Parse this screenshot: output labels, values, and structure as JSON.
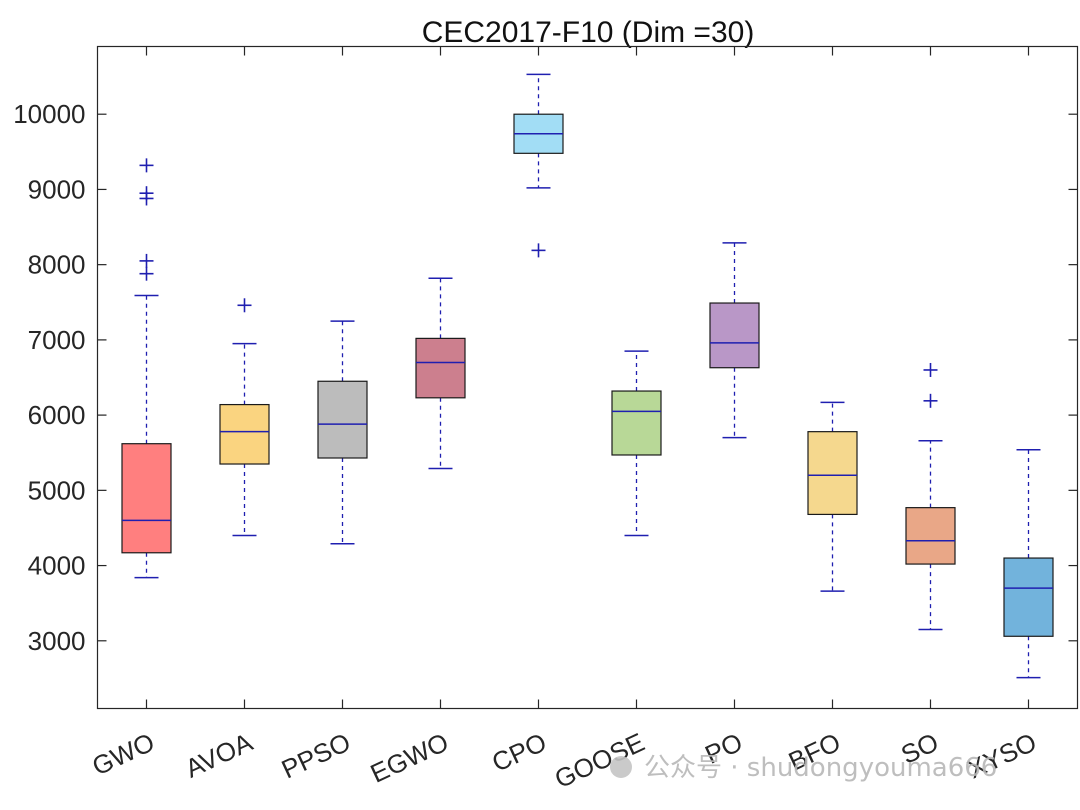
{
  "chart_data": {
    "type": "boxplot",
    "title": "CEC2017-F10 (Dim =30)",
    "xlabel": "",
    "ylabel": "",
    "ylim": [
      2100,
      10900
    ],
    "yticks": [
      3000,
      4000,
      5000,
      6000,
      7000,
      8000,
      9000,
      10000
    ],
    "grid": false,
    "categories": [
      "GWO",
      "AVOA",
      "PPSO",
      "EGWO",
      "CPO",
      "GOOSE",
      "PO",
      "BFO",
      "SO",
      "XYSO"
    ],
    "boxes": [
      {
        "name": "GWO",
        "whisker_low": 3840,
        "q1": 4170,
        "median": 4600,
        "q3": 5620,
        "whisker_high": 7590,
        "outliers": [
          7880,
          8050,
          8880,
          8950,
          9320
        ],
        "color": "#FF7F7F"
      },
      {
        "name": "AVOA",
        "whisker_low": 4400,
        "q1": 5350,
        "median": 5780,
        "q3": 6140,
        "whisker_high": 6950,
        "outliers": [
          7460
        ],
        "color": "#FAD480"
      },
      {
        "name": "PPSO",
        "whisker_low": 4290,
        "q1": 5430,
        "median": 5880,
        "q3": 6450,
        "whisker_high": 7250,
        "outliers": [],
        "color": "#BCBCBC"
      },
      {
        "name": "EGWO",
        "whisker_low": 5290,
        "q1": 6230,
        "median": 6700,
        "q3": 7020,
        "whisker_high": 7820,
        "outliers": [],
        "color": "#CC7F8E"
      },
      {
        "name": "CPO",
        "whisker_low": 9020,
        "q1": 9480,
        "median": 9740,
        "q3": 10000,
        "whisker_high": 10530,
        "outliers": [
          8190
        ],
        "color": "#A2DDF5"
      },
      {
        "name": "GOOSE",
        "whisker_low": 4400,
        "q1": 5470,
        "median": 6050,
        "q3": 6320,
        "whisker_high": 6850,
        "outliers": [],
        "color": "#B8D897"
      },
      {
        "name": "PO",
        "whisker_low": 5700,
        "q1": 6630,
        "median": 6960,
        "q3": 7490,
        "whisker_high": 8290,
        "outliers": [],
        "color": "#B997C7"
      },
      {
        "name": "BFO",
        "whisker_low": 3660,
        "q1": 4680,
        "median": 5200,
        "q3": 5780,
        "whisker_high": 6170,
        "outliers": [],
        "color": "#F5D88E"
      },
      {
        "name": "SO",
        "whisker_low": 3150,
        "q1": 4020,
        "median": 4330,
        "q3": 4770,
        "whisker_high": 5660,
        "outliers": [
          6190,
          6600
        ],
        "color": "#E9A787"
      },
      {
        "name": "XYSO",
        "whisker_low": 2510,
        "q1": 3060,
        "median": 3700,
        "q3": 4100,
        "whisker_high": 5540,
        "outliers": [],
        "color": "#72B3DC"
      }
    ],
    "line_color": "#1F1FB0",
    "outlier_color": "#1F1FB0"
  },
  "watermark": "公众号 · shudongyouma666"
}
